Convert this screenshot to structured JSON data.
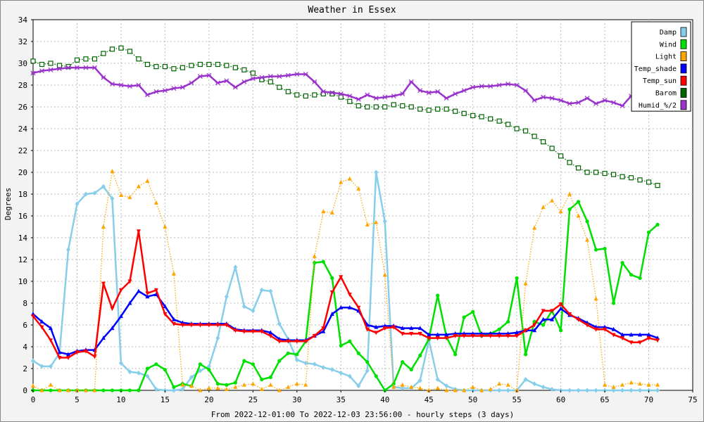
{
  "chart_data": {
    "type": "line",
    "title": "Weather in Essex",
    "xlabel": "From 2022-12-01:00 To 2022-12-03 23:56:00 - hourly steps (3 days)",
    "ylabel": "Degrees",
    "xlim": [
      0,
      75
    ],
    "ylim": [
      0,
      34
    ],
    "xticks": [
      0,
      5,
      10,
      15,
      20,
      25,
      30,
      35,
      40,
      45,
      50,
      55,
      60,
      65,
      70,
      75
    ],
    "yticks": [
      0,
      2,
      4,
      6,
      8,
      10,
      12,
      14,
      16,
      18,
      20,
      22,
      24,
      26,
      28,
      30,
      32,
      34
    ],
    "grid": true,
    "legend_position": "top-right",
    "x": [
      0,
      1,
      2,
      3,
      4,
      5,
      6,
      7,
      8,
      9,
      10,
      11,
      12,
      13,
      14,
      15,
      16,
      17,
      18,
      19,
      20,
      21,
      22,
      23,
      24,
      25,
      26,
      27,
      28,
      29,
      30,
      31,
      32,
      33,
      34,
      35,
      36,
      37,
      38,
      39,
      40,
      41,
      42,
      43,
      44,
      45,
      46,
      47,
      48,
      49,
      50,
      51,
      52,
      53,
      54,
      55,
      56,
      57,
      58,
      59,
      60,
      61,
      62,
      63,
      64,
      65,
      66,
      67,
      68,
      69,
      70,
      71
    ],
    "series": [
      {
        "name": "Damp",
        "color": "#87ceeb",
        "style": "solid",
        "marker": "diamond",
        "values": [
          2.7,
          2.2,
          2.2,
          3.4,
          12.9,
          17.1,
          18,
          18.1,
          18.7,
          17.6,
          2.5,
          1.7,
          1.6,
          1.3,
          0.1,
          0,
          0,
          0.1,
          1.2,
          1.8,
          2.2,
          4.8,
          8.6,
          11.3,
          7.7,
          7.3,
          9.2,
          9.1,
          6.1,
          4.7,
          2.8,
          2.5,
          2.4,
          2.1,
          1.9,
          1.6,
          1.3,
          0.4,
          1.8,
          20,
          15.5,
          0.3,
          0.2,
          0.2,
          0.9,
          4.6,
          1,
          0.4,
          0.1,
          0,
          0,
          0,
          0,
          0,
          0,
          0,
          1,
          0.6,
          0.3,
          0.1,
          0,
          0,
          0,
          0,
          0,
          0,
          0,
          0,
          0,
          0,
          0,
          0
        ]
      },
      {
        "name": "Wind",
        "color": "#00e000",
        "style": "solid",
        "marker": "circle",
        "values": [
          0,
          0,
          0,
          0,
          0,
          0,
          0,
          0,
          0,
          0,
          0,
          0,
          0,
          2,
          2.4,
          1.9,
          0.3,
          0.6,
          0.4,
          2.4,
          1.9,
          0.6,
          0.5,
          0.7,
          2.7,
          2.4,
          1,
          1.2,
          2.7,
          3.4,
          3.3,
          4.5,
          11.7,
          11.8,
          10.3,
          4.1,
          4.5,
          3.4,
          2.6,
          1.3,
          0,
          0.6,
          2.6,
          1.9,
          3.2,
          4.7,
          8.7,
          4.9,
          3.3,
          6.7,
          7.2,
          5,
          5.2,
          5.6,
          6.3,
          10.3,
          3.3,
          6.3,
          6,
          7.3,
          5.5,
          16.6,
          17.3,
          15.5,
          12.9,
          13,
          8,
          11.7,
          10.6,
          10.3,
          14.5,
          15.2
        ]
      },
      {
        "name": "Light",
        "color": "#ffa500",
        "style": "dotted",
        "marker": "triangle-up",
        "values": [
          0.4,
          0,
          0.5,
          0,
          0,
          0,
          0,
          0,
          15,
          20.1,
          17.9,
          17.7,
          18.7,
          19.2,
          17.2,
          15,
          10.7,
          0.5,
          0.4,
          0,
          0.2,
          0.2,
          0.1,
          0.3,
          0.5,
          0.6,
          0.1,
          0.5,
          0,
          0.3,
          0.6,
          0.5,
          12.3,
          16.4,
          16.3,
          19.1,
          19.4,
          18.5,
          15.2,
          15.4,
          10.6,
          0.3,
          0.5,
          0.3,
          0.2,
          0,
          0.2,
          0,
          0,
          0,
          0.3,
          0,
          0.1,
          0.6,
          0.5,
          0,
          9.8,
          14.9,
          16.8,
          17.4,
          16.4,
          18,
          16,
          13.8,
          8.4,
          0.5,
          0.3,
          0.5,
          0.7,
          0.6,
          0.5,
          0.5
        ]
      },
      {
        "name": "Temp_shade",
        "color": "#0000ff",
        "style": "solid",
        "marker": "triangle-up",
        "values": [
          7,
          6.3,
          5.7,
          3.5,
          3.3,
          3.6,
          3.7,
          3.7,
          4.8,
          5.7,
          6.8,
          8,
          9.1,
          8.6,
          8.8,
          7.7,
          6.5,
          6.2,
          6.1,
          6.1,
          6.1,
          6.1,
          6.1,
          5.6,
          5.5,
          5.5,
          5.5,
          5.3,
          4.7,
          4.6,
          4.6,
          4.6,
          5,
          5.4,
          7,
          7.6,
          7.6,
          7.3,
          6,
          5.8,
          5.9,
          5.9,
          5.7,
          5.7,
          5.7,
          5.1,
          5.1,
          5.1,
          5.2,
          5.2,
          5.2,
          5.2,
          5.2,
          5.2,
          5.2,
          5.3,
          5.5,
          5.5,
          6.5,
          6.5,
          7.5,
          6.9,
          6.6,
          6.2,
          5.8,
          5.8,
          5.6,
          5.1,
          5.1,
          5.1,
          5.1,
          4.8
        ]
      },
      {
        "name": "Temp_sun",
        "color": "#ff0000",
        "style": "solid",
        "marker": "triangle-down",
        "values": [
          6.8,
          5.8,
          4.6,
          3,
          3,
          3.5,
          3.6,
          3.1,
          9.8,
          7.5,
          9.2,
          10,
          14.6,
          8.9,
          9.2,
          7,
          6.1,
          6,
          6,
          6,
          6,
          6,
          6,
          5.5,
          5.4,
          5.4,
          5.4,
          5,
          4.5,
          4.5,
          4.5,
          4.5,
          5,
          5.7,
          9,
          10.4,
          8.8,
          7.6,
          5.6,
          5.3,
          5.7,
          5.8,
          5.2,
          5.2,
          5.2,
          4.8,
          4.8,
          4.8,
          5,
          5,
          5,
          5,
          5,
          5,
          5,
          5,
          5.5,
          6,
          7.3,
          7.3,
          7.9,
          7,
          6.5,
          6,
          5.6,
          5.6,
          5.1,
          4.8,
          4.4,
          4.4,
          4.8,
          4.6
        ]
      },
      {
        "name": "Barom",
        "color": "#006400",
        "style": "dotted",
        "marker": "square",
        "values": [
          30.2,
          29.9,
          30,
          29.8,
          29.7,
          30.3,
          30.4,
          30.4,
          30.9,
          31.3,
          31.4,
          31.1,
          30.4,
          29.9,
          29.7,
          29.7,
          29.5,
          29.6,
          29.8,
          29.9,
          29.9,
          29.9,
          29.8,
          29.6,
          29.4,
          29.1,
          28.5,
          28.3,
          27.8,
          27.4,
          27.1,
          27,
          27.1,
          27.2,
          27.2,
          26.9,
          26.5,
          26.1,
          26,
          26,
          26,
          26.2,
          26.1,
          26,
          25.8,
          25.7,
          25.8,
          25.8,
          25.6,
          25.4,
          25.2,
          25.1,
          24.9,
          24.7,
          24.4,
          24,
          23.8,
          23.3,
          22.8,
          22.2,
          21.5,
          20.9,
          20.4,
          20,
          20,
          19.9,
          19.8,
          19.6,
          19.5,
          19.3,
          19.1,
          18.8
        ]
      },
      {
        "name": "Humid_%/2",
        "color": "#9933cc",
        "style": "solid",
        "marker": "cross",
        "values": [
          29.1,
          29.3,
          29.4,
          29.5,
          29.6,
          29.6,
          29.6,
          29.6,
          28.7,
          28.1,
          28,
          27.9,
          28,
          27.1,
          27.4,
          27.5,
          27.7,
          27.8,
          28.2,
          28.8,
          28.9,
          28.2,
          28.4,
          27.8,
          28.3,
          28.6,
          28.7,
          28.8,
          28.8,
          28.9,
          29,
          29,
          28.3,
          27.4,
          27.3,
          27.2,
          27,
          26.7,
          27.1,
          26.8,
          26.9,
          27,
          27.2,
          28.3,
          27.5,
          27.3,
          27.4,
          26.8,
          27.2,
          27.5,
          27.8,
          27.9,
          27.9,
          28,
          28.1,
          28,
          27.5,
          26.6,
          26.9,
          26.8,
          26.6,
          26.3,
          26.4,
          26.8,
          26.3,
          26.6,
          26.4,
          26.1,
          27,
          26.6,
          26.3,
          26.3
        ]
      }
    ]
  }
}
